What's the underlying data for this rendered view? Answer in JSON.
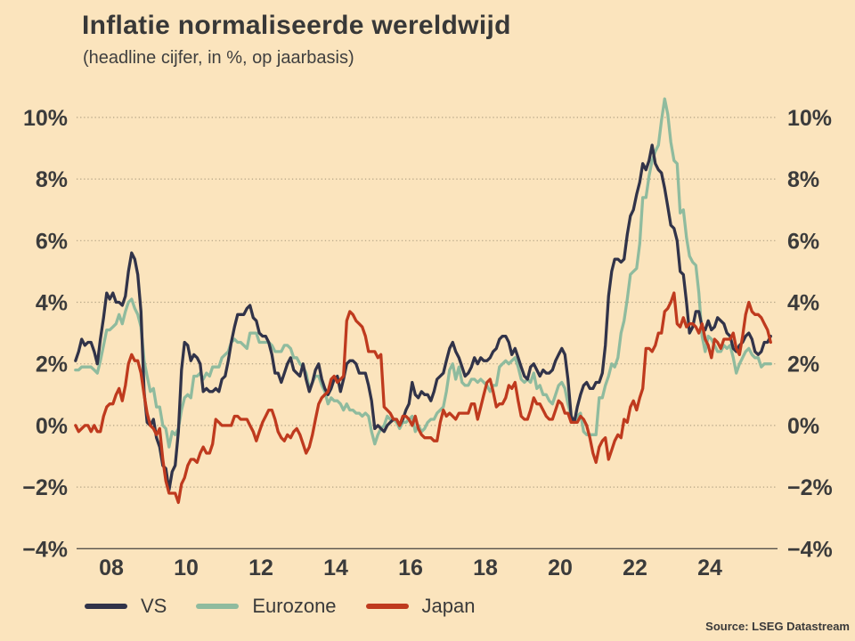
{
  "title": "Inflatie normaliseerde wereldwijd",
  "subtitle": "(headline cijfer, in %, op jaarbasis)",
  "source": "Source: LSEG Datastream",
  "colors": {
    "background": "#fbe4bd",
    "text": "#3b3b3b",
    "grid": "#b3a385",
    "axis": "#56524b",
    "vs": "#313349",
    "eurozone": "#8fbb9e",
    "japan": "#bf3a1e"
  },
  "legend": [
    {
      "label": "VS"
    },
    {
      "label": "Eurozone"
    },
    {
      "label": "Japan"
    }
  ],
  "chart_data": {
    "type": "line",
    "title": "Inflatie normaliseerde wereldwijd",
    "subtitle": "(headline cijfer, in %, op jaarbasis)",
    "unit": "%",
    "frequency": "monthly",
    "start_year": 2007,
    "start_month": 1,
    "end_period": "2025-08",
    "grid": "dotted-horizontal",
    "legend_position": "bottom-left",
    "ylim": [
      -4,
      10.8
    ],
    "y_ticks": [
      {
        "value": 10,
        "label": "10%"
      },
      {
        "value": 8,
        "label": "8%"
      },
      {
        "value": 6,
        "label": "6%"
      },
      {
        "value": 4,
        "label": "4%"
      },
      {
        "value": 2,
        "label": "2%"
      },
      {
        "value": 0,
        "label": "0%"
      },
      {
        "value": -2,
        "label": "−2%"
      },
      {
        "value": -4,
        "label": "−4%"
      }
    ],
    "x_ticks": [
      {
        "label": "08",
        "year": 2008
      },
      {
        "label": "10",
        "year": 2010
      },
      {
        "label": "12",
        "year": 2012
      },
      {
        "label": "14",
        "year": 2014
      },
      {
        "label": "16",
        "year": 2016
      },
      {
        "label": "18",
        "year": 2018
      },
      {
        "label": "20",
        "year": 2020
      },
      {
        "label": "22",
        "year": 2022
      },
      {
        "label": "24",
        "year": 2024
      }
    ],
    "series": [
      {
        "name": "VS",
        "color": "#313349",
        "values": [
          2.1,
          2.4,
          2.8,
          2.6,
          2.7,
          2.7,
          2.4,
          2.0,
          2.8,
          3.5,
          4.3,
          4.1,
          4.3,
          4.0,
          4.0,
          3.9,
          4.2,
          5.0,
          5.6,
          5.4,
          4.9,
          3.7,
          1.1,
          0.1,
          0.0,
          0.2,
          -0.4,
          -0.7,
          -1.3,
          -1.4,
          -2.1,
          -1.5,
          -1.3,
          -0.2,
          1.8,
          2.7,
          2.6,
          2.1,
          2.3,
          2.2,
          2.0,
          1.1,
          1.2,
          1.1,
          1.1,
          1.2,
          1.1,
          1.5,
          1.6,
          2.1,
          2.7,
          3.2,
          3.6,
          3.6,
          3.6,
          3.8,
          3.9,
          3.5,
          3.4,
          3.0,
          2.9,
          2.9,
          2.7,
          2.3,
          1.7,
          1.7,
          1.4,
          1.7,
          2.0,
          2.2,
          1.8,
          1.7,
          1.6,
          2.0,
          1.5,
          1.1,
          1.4,
          1.8,
          2.0,
          1.5,
          1.2,
          1.0,
          1.2,
          1.5,
          1.6,
          1.1,
          1.5,
          2.0,
          2.1,
          2.1,
          2.0,
          1.7,
          1.7,
          1.7,
          1.3,
          0.8,
          -0.1,
          0.0,
          -0.1,
          -0.2,
          0.0,
          0.1,
          0.2,
          0.2,
          0.0,
          0.2,
          0.5,
          0.7,
          1.4,
          1.0,
          0.9,
          1.1,
          1.0,
          1.0,
          0.8,
          1.1,
          1.5,
          1.6,
          1.7,
          2.1,
          2.5,
          2.7,
          2.4,
          2.2,
          1.9,
          1.6,
          1.7,
          1.9,
          2.2,
          2.0,
          2.2,
          2.1,
          2.1,
          2.2,
          2.4,
          2.5,
          2.8,
          2.9,
          2.9,
          2.7,
          2.3,
          2.5,
          2.2,
          1.9,
          1.6,
          1.5,
          1.9,
          2.0,
          1.8,
          1.6,
          1.8,
          1.7,
          1.7,
          1.8,
          2.1,
          2.3,
          2.5,
          2.3,
          1.5,
          0.3,
          0.1,
          0.6,
          1.0,
          1.3,
          1.4,
          1.2,
          1.2,
          1.4,
          1.4,
          1.7,
          2.6,
          4.2,
          5.0,
          5.4,
          5.4,
          5.3,
          5.4,
          6.2,
          6.8,
          7.0,
          7.5,
          7.9,
          8.5,
          8.3,
          8.6,
          9.1,
          8.5,
          8.3,
          8.2,
          7.7,
          7.1,
          6.5,
          6.4,
          6.0,
          5.0,
          4.9,
          4.0,
          3.0,
          3.2,
          3.7,
          3.7,
          3.2,
          3.1,
          3.4,
          3.1,
          3.2,
          3.5,
          3.4,
          3.3,
          3.0,
          2.9,
          2.5,
          2.4,
          2.6,
          2.7,
          2.9,
          3.0,
          2.8,
          2.4,
          2.3,
          2.4,
          2.7,
          2.7,
          2.9
        ]
      },
      {
        "name": "Eurozone",
        "color": "#8fbb9e",
        "values": [
          1.8,
          1.8,
          1.9,
          1.9,
          1.9,
          1.9,
          1.8,
          1.7,
          2.1,
          2.6,
          3.1,
          3.1,
          3.2,
          3.3,
          3.6,
          3.3,
          3.7,
          4.0,
          4.1,
          3.8,
          3.6,
          3.2,
          2.1,
          1.6,
          1.1,
          1.2,
          0.6,
          0.6,
          0.0,
          -0.1,
          -0.7,
          -0.2,
          -0.3,
          -0.1,
          0.5,
          0.9,
          1.0,
          0.9,
          1.6,
          1.6,
          1.7,
          1.5,
          1.7,
          1.6,
          1.9,
          1.9,
          1.9,
          2.2,
          2.3,
          2.4,
          2.7,
          2.8,
          2.7,
          2.7,
          2.6,
          2.5,
          3.0,
          3.0,
          3.0,
          2.7,
          2.7,
          2.7,
          2.7,
          2.6,
          2.4,
          2.4,
          2.4,
          2.6,
          2.6,
          2.5,
          2.2,
          2.2,
          2.0,
          1.9,
          1.7,
          1.2,
          1.4,
          1.6,
          1.6,
          1.3,
          1.1,
          0.7,
          0.9,
          0.8,
          0.8,
          0.7,
          0.5,
          0.7,
          0.5,
          0.5,
          0.4,
          0.4,
          0.3,
          0.4,
          0.3,
          -0.2,
          -0.6,
          -0.3,
          -0.1,
          0.0,
          0.3,
          0.2,
          0.2,
          0.1,
          -0.1,
          0.1,
          0.1,
          0.2,
          0.3,
          -0.2,
          0.0,
          -0.2,
          -0.1,
          0.1,
          0.2,
          0.2,
          0.4,
          0.5,
          0.6,
          1.1,
          1.8,
          2.0,
          1.5,
          1.9,
          1.4,
          1.3,
          1.3,
          1.5,
          1.5,
          1.4,
          1.5,
          1.4,
          1.3,
          1.1,
          1.3,
          1.3,
          1.9,
          2.0,
          2.1,
          2.0,
          2.1,
          2.2,
          1.9,
          1.5,
          1.4,
          1.5,
          1.4,
          1.7,
          1.2,
          1.3,
          1.0,
          1.0,
          0.8,
          0.7,
          1.0,
          1.3,
          1.4,
          1.2,
          0.7,
          0.3,
          0.1,
          0.3,
          0.4,
          -0.2,
          -0.3,
          -0.3,
          -0.3,
          -0.3,
          0.9,
          0.9,
          1.3,
          1.6,
          2.0,
          1.9,
          2.2,
          3.0,
          3.4,
          4.1,
          4.9,
          5.0,
          5.1,
          5.9,
          7.4,
          7.4,
          8.1,
          8.6,
          8.9,
          9.1,
          9.9,
          10.6,
          10.1,
          9.2,
          8.6,
          8.5,
          6.9,
          7.0,
          6.1,
          5.5,
          5.3,
          5.2,
          4.3,
          2.9,
          2.4,
          2.9,
          2.8,
          2.6,
          2.4,
          2.4,
          2.6,
          2.5,
          2.6,
          2.2,
          1.7,
          2.0,
          2.2,
          2.4,
          2.5,
          2.3,
          2.2,
          2.2,
          1.9,
          2.0,
          2.0,
          2.0
        ]
      },
      {
        "name": "Japan",
        "color": "#bf3a1e",
        "values": [
          0.0,
          -0.2,
          -0.1,
          0.0,
          0.0,
          -0.2,
          0.0,
          -0.2,
          -0.2,
          0.3,
          0.6,
          0.7,
          0.7,
          1.0,
          1.2,
          0.8,
          1.3,
          2.0,
          2.3,
          2.1,
          2.1,
          1.7,
          1.0,
          0.4,
          0.0,
          -0.1,
          -0.3,
          -0.1,
          -1.1,
          -1.8,
          -2.2,
          -2.2,
          -2.2,
          -2.5,
          -1.9,
          -1.7,
          -1.3,
          -1.1,
          -1.1,
          -1.2,
          -0.9,
          -0.7,
          -0.9,
          -0.9,
          -0.6,
          0.2,
          0.1,
          0.0,
          0.0,
          0.0,
          0.0,
          0.3,
          0.3,
          0.2,
          0.2,
          0.2,
          0.0,
          -0.2,
          -0.5,
          -0.2,
          0.1,
          0.3,
          0.5,
          0.5,
          0.2,
          -0.2,
          -0.4,
          -0.5,
          -0.3,
          -0.4,
          -0.2,
          -0.1,
          -0.3,
          -0.6,
          -0.9,
          -0.7,
          -0.3,
          0.2,
          0.7,
          0.9,
          1.0,
          1.1,
          1.5,
          1.6,
          1.4,
          1.5,
          1.6,
          3.4,
          3.7,
          3.6,
          3.4,
          3.3,
          3.2,
          2.9,
          2.4,
          2.4,
          2.4,
          2.2,
          2.3,
          0.6,
          0.5,
          0.4,
          0.2,
          0.2,
          0.0,
          0.3,
          0.3,
          0.2,
          0.0,
          0.3,
          -0.1,
          -0.3,
          -0.4,
          -0.4,
          -0.4,
          -0.5,
          -0.5,
          0.1,
          0.5,
          0.3,
          0.4,
          0.3,
          0.2,
          0.4,
          0.4,
          0.4,
          0.4,
          0.7,
          0.7,
          0.2,
          0.6,
          1.0,
          1.4,
          1.5,
          1.1,
          0.6,
          0.7,
          0.7,
          0.9,
          1.3,
          1.2,
          1.4,
          0.8,
          0.3,
          0.2,
          0.2,
          0.5,
          0.9,
          0.7,
          0.7,
          0.5,
          0.3,
          0.2,
          0.2,
          0.5,
          0.8,
          0.7,
          0.4,
          0.4,
          0.1,
          0.1,
          0.1,
          0.3,
          0.2,
          0.0,
          -0.4,
          -0.9,
          -1.2,
          -0.7,
          -0.5,
          -0.4,
          -1.1,
          -0.8,
          -0.5,
          -0.3,
          -0.4,
          0.2,
          0.1,
          0.6,
          0.8,
          0.5,
          0.9,
          1.2,
          2.5,
          2.5,
          2.4,
          2.6,
          3.0,
          3.0,
          3.7,
          3.8,
          4.0,
          4.3,
          3.3,
          3.2,
          3.5,
          3.2,
          3.3,
          3.3,
          3.2,
          3.0,
          3.3,
          2.8,
          2.6,
          2.2,
          2.8,
          2.7,
          2.5,
          2.8,
          2.8,
          2.8,
          3.0,
          2.5,
          2.3,
          2.9,
          3.6,
          4.0,
          3.7,
          3.6,
          3.6,
          3.5,
          3.3,
          3.1,
          2.7
        ]
      }
    ]
  }
}
